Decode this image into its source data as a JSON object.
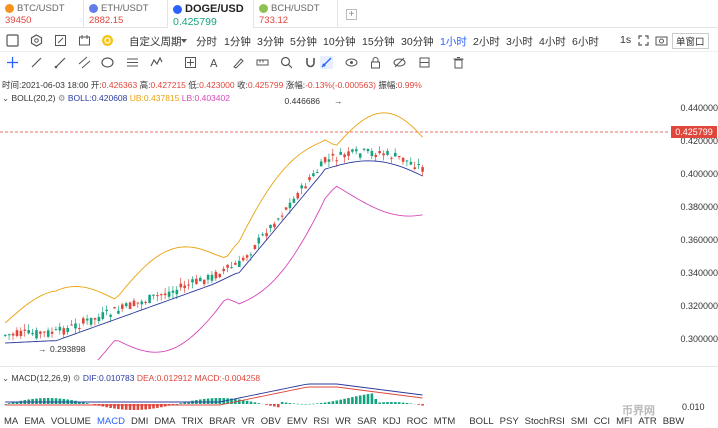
{
  "tabs": [
    {
      "symbol": "BTC/USDT",
      "price": "39450",
      "color": "#f7931a"
    },
    {
      "symbol": "ETH/USDT",
      "price": "2882.15",
      "color": "#627eea"
    },
    {
      "symbol": "DOGE/USD",
      "price": "0.425799",
      "color": "#2962ff"
    },
    {
      "symbol": "BCH/USDT",
      "price": "733.12",
      "color": "#8dc351"
    }
  ],
  "toolbar": {
    "custom_period": "自定义周期",
    "intervals": [
      "分时",
      "1分钟",
      "3分钟",
      "5分钟",
      "10分钟",
      "15分钟",
      "30分钟",
      "1小时",
      "2小时",
      "3小时",
      "4小时",
      "6小时"
    ],
    "active_interval": "1小时",
    "scale_label": "1s",
    "window_label": "单窗口"
  },
  "info": {
    "time_label": "时间:",
    "time": "2021-06-03 18:00",
    "open_label": "开:",
    "open": "0.426363",
    "high_label": "高:",
    "high": "0.427215",
    "low_label": "低:",
    "low": "0.423000",
    "close_label": "收:",
    "close": "0.425799",
    "change_label": "涨幅:",
    "change": "-0.13%(-0.000563)",
    "amp_label": "振幅:",
    "amp": "0.99%"
  },
  "boll": {
    "name": "BOLL(20,2)",
    "boll_label": "BOLL:",
    "boll": "0.420608",
    "ub_label": "UB:",
    "ub": "0.437815",
    "lb_label": "LB:",
    "lb": "0.403402",
    "high_mark": "0.446686"
  },
  "macd": {
    "name": "MACD(12,26,9)",
    "dif_label": "DIF:",
    "dif": "0.010783",
    "dea_label": "DEA:",
    "dea": "0.012912",
    "macd_label": "MACD:",
    "macd": "-0.004258"
  },
  "axis": {
    "labels": [
      "0.440000",
      "0.420000",
      "0.400000",
      "0.380000",
      "0.360000",
      "0.340000",
      "0.320000",
      "0.300000"
    ],
    "current": "0.425799",
    "low_mark": "0.293898",
    "macd_tick": "0.010"
  },
  "indicators": [
    "MA",
    "EMA",
    "VOLUME",
    "MACD",
    "DMI",
    "DMA",
    "TRIX",
    "BRAR",
    "VR",
    "OBV",
    "EMV",
    "RSI",
    "WR",
    "SAR",
    "KDJ",
    "ROC",
    "MTM",
    "BOLL",
    "PSY",
    "StochRSI",
    "SMI",
    "CCI",
    "MFI",
    "ATR",
    "BBW"
  ],
  "active_indicator": "MACD",
  "watermark": "币界网"
}
